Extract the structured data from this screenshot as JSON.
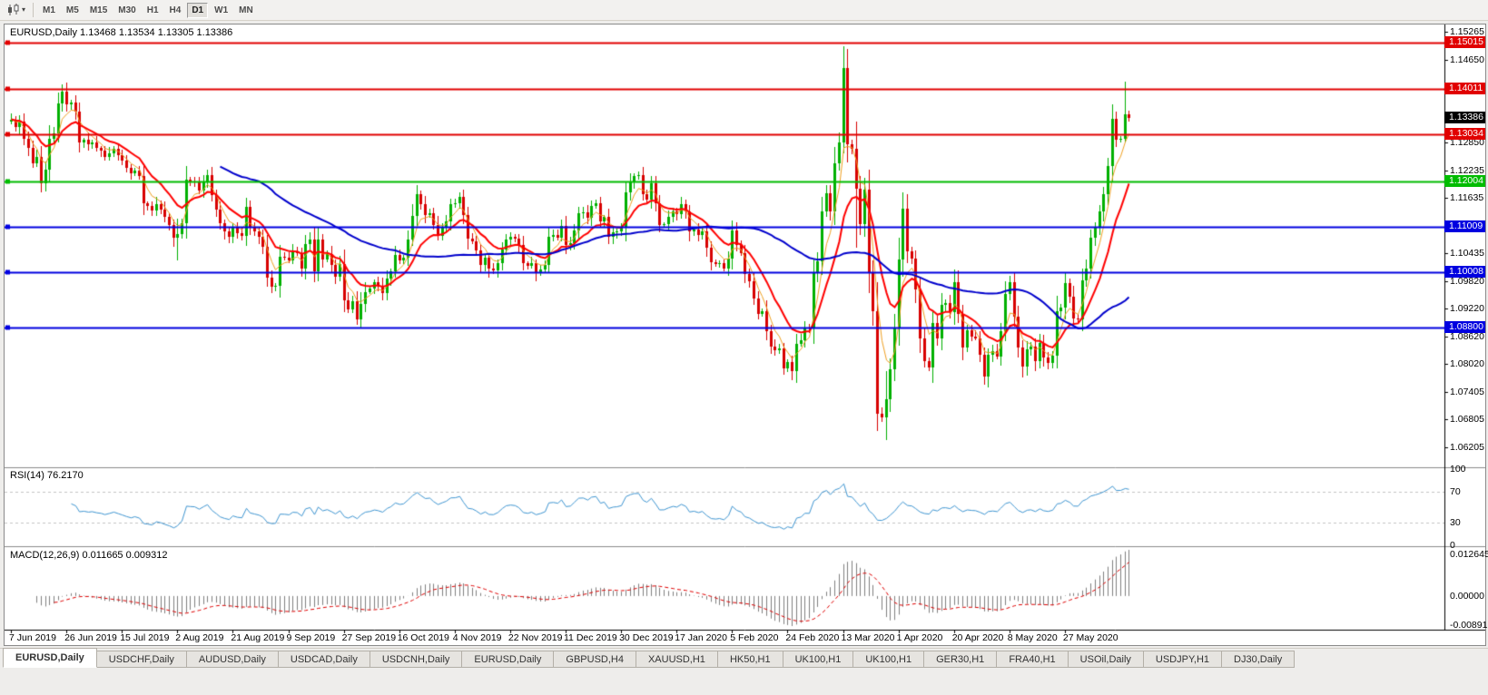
{
  "toolbar": {
    "timeframes": [
      "M1",
      "M5",
      "M15",
      "M30",
      "H1",
      "H4",
      "D1",
      "W1",
      "MN"
    ],
    "selected_timeframe": "D1"
  },
  "quote": {
    "symbol": "EURUSD,Daily",
    "open": "1.13468",
    "high": "1.13534",
    "low": "1.13305",
    "close": "1.13386"
  },
  "indicators": {
    "rsi": {
      "label": "RSI(14)",
      "value": "76.2170",
      "period": 14,
      "color": "#3f96d2",
      "levels": [
        {
          "label": "100",
          "value": 100
        },
        {
          "label": "70",
          "value": 70
        },
        {
          "label": "30",
          "value": 30
        },
        {
          "label": "0",
          "value": 0
        }
      ],
      "dashed_levels": [
        70,
        30
      ]
    },
    "macd": {
      "label": "MACD(12,26,9)",
      "main_value": "0.011665",
      "signal_value": "0.009312",
      "fast": 12,
      "slow": 26,
      "signal": 9,
      "hist_color": "#808080",
      "signal_color": "#e00000",
      "axis_labels": [
        {
          "label": "0.012645",
          "pos": "top"
        },
        {
          "label": "0.00000",
          "pos": "zero"
        },
        {
          "label": "-0.00891",
          "pos": "bottom"
        }
      ]
    }
  },
  "chart_data": {
    "type": "candlestick",
    "symbol": "EURUSD",
    "timeframe": "Daily",
    "price_top": 1.154,
    "price_bottom": 1.0578,
    "current_price": "1.13386",
    "bull_color": "#00b000",
    "bear_color": "#d80000",
    "x_labels": [
      "7 Jun 2019",
      "26 Jun 2019",
      "15 Jul 2019",
      "2 Aug 2019",
      "21 Aug 2019",
      "9 Sep 2019",
      "27 Sep 2019",
      "16 Oct 2019",
      "4 Nov 2019",
      "22 Nov 2019",
      "11 Dec 2019",
      "30 Dec 2019",
      "17 Jan 2020",
      "5 Feb 2020",
      "24 Feb 2020",
      "13 Mar 2020",
      "1 Apr 2020",
      "20 Apr 2020",
      "8 May 2020",
      "27 May 2020"
    ],
    "label_every_n_bars": 13,
    "price_axis_ticks": [
      "1.15265",
      "1.14650",
      "1.14035",
      "1.13420",
      "1.12850",
      "1.12235",
      "1.11635",
      "1.11020",
      "1.10435",
      "1.09820",
      "1.09220",
      "1.08620",
      "1.08020",
      "1.07405",
      "1.06805",
      "1.06205"
    ],
    "hlines": [
      {
        "price": 1.15015,
        "label": "1.15015",
        "color": "#e10000"
      },
      {
        "price": 1.14011,
        "label": "1.14011",
        "color": "#e10000"
      },
      {
        "price": 1.13034,
        "label": "1.13034",
        "color": "#e10000"
      },
      {
        "price": 1.12004,
        "label": "1.12004",
        "color": "#00bc00"
      },
      {
        "price": 1.11009,
        "label": "1.11009",
        "color": "#0000e0"
      },
      {
        "price": 1.10008,
        "label": "1.10008",
        "color": "#0000e0"
      },
      {
        "price": 1.088,
        "label": "1.08800",
        "color": "#0000e0"
      }
    ],
    "moving_averages": [
      {
        "period": 5,
        "method": "ema",
        "color": "#f0a020",
        "width": 1
      },
      {
        "period": 13,
        "method": "ema",
        "color": "#ff0000",
        "width": 2
      },
      {
        "period": 50,
        "method": "sma",
        "color": "#0000cc",
        "width": 2
      }
    ],
    "closes_pips": [
      11335,
      11318,
      11330,
      11292,
      11272,
      11240,
      11252,
      11196,
      11225,
      11293,
      11305,
      11370,
      11396,
      11368,
      11372,
      11352,
      11285,
      11290,
      11280,
      11284,
      11272,
      11266,
      11253,
      11261,
      11270,
      11256,
      11245,
      11230,
      11218,
      11224,
      11212,
      11152,
      11147,
      11136,
      11151,
      11139,
      11122,
      11104,
      11076,
      11085,
      11108,
      11203,
      11200,
      11198,
      11180,
      11199,
      11213,
      11170,
      11139,
      11108,
      11090,
      11078,
      11100,
      11086,
      11081,
      11144,
      11101,
      11090,
      11078,
      11058,
      10990,
      10970,
      10972,
      11035,
      11034,
      11028,
      11046,
      11043,
      11010,
      11062,
      11073,
      11004,
      11072,
      11030,
      11042,
      11017,
      10992,
      11020,
      10941,
      10921,
      10939,
      10899,
      10932,
      10959,
      10965,
      10979,
      10972,
      10956,
      10988,
      11003,
      11040,
      11028,
      11033,
      11073,
      11125,
      11171,
      11150,
      11126,
      11131,
      11105,
      11080,
      11099,
      11113,
      11150,
      11152,
      11166,
      11126,
      11074,
      11068,
      11050,
      11018,
      11034,
      11009,
      11006,
      11021,
      11051,
      11072,
      11078,
      11074,
      11060,
      11021,
      11015,
      11022,
      11001,
      11008,
      11018,
      11078,
      11082,
      11077,
      11103,
      11060,
      11064,
      11092,
      11130,
      11132,
      11120,
      11146,
      11152,
      11113,
      11122,
      11078,
      11088,
      11090,
      11098,
      11176,
      11199,
      11212,
      11213,
      11172,
      11160,
      11196,
      11153,
      11105,
      11106,
      11122,
      11134,
      11128,
      11150,
      11135,
      11090,
      11095,
      11083,
      11091,
      11055,
      11024,
      11019,
      11022,
      11010,
      11032,
      11093,
      11060,
      11044,
      10998,
      10982,
      10945,
      10911,
      10917,
      10873,
      10840,
      10831,
      10835,
      10792,
      10805,
      10785,
      10846,
      10854,
      10881,
      10880,
      10999,
      11026,
      11134,
      11173,
      11135,
      11240,
      11284,
      11446,
      11281,
      11270,
      11184,
      11106,
      11182,
      10999,
      10916,
      10692,
      10685,
      10725,
      10790,
      10880,
      11030,
      11140,
      11047,
      11031,
      10963,
      10858,
      10808,
      10793,
      10891,
      10858,
      10930,
      10935,
      10914,
      10980,
      10910,
      10838,
      10875,
      10862,
      10858,
      10822,
      10774,
      10821,
      10830,
      10818,
      10873,
      10955,
      10980,
      10905,
      10838,
      10795,
      10833,
      10839,
      10807,
      10848,
      10816,
      10804,
      10820,
      10916,
      10924,
      10977,
      10949,
      10900,
      10898,
      10983,
      11009,
      11076,
      11101,
      11134,
      11171,
      11234,
      11337,
      11290,
      11292,
      11347,
      11339
    ],
    "open_overrides_pips": {
      "0": 11330,
      "262": 11347
    },
    "hl_overrides_pips": {
      "12": [
        11412,
        11352
      ],
      "39": [
        11118,
        11027
      ],
      "82": [
        10958,
        10879
      ],
      "195": [
        11495,
        11260
      ],
      "198": [
        11330,
        11055
      ],
      "203": [
        10980,
        10655
      ],
      "205": [
        10786,
        10636
      ],
      "261": [
        11418,
        11285
      ],
      "262": [
        11353,
        11331
      ]
    }
  },
  "tabs": [
    {
      "label": "EURUSD,Daily",
      "active": true
    },
    {
      "label": "USDCHF,Daily",
      "active": false
    },
    {
      "label": "AUDUSD,Daily",
      "active": false
    },
    {
      "label": "USDCAD,Daily",
      "active": false
    },
    {
      "label": "USDCNH,Daily",
      "active": false
    },
    {
      "label": "EURUSD,Daily",
      "active": false
    },
    {
      "label": "GBPUSD,H4",
      "active": false
    },
    {
      "label": "XAUUSD,H1",
      "active": false
    },
    {
      "label": "HK50,H1",
      "active": false
    },
    {
      "label": "UK100,H1",
      "active": false
    },
    {
      "label": "UK100,H1",
      "active": false
    },
    {
      "label": "GER30,H1",
      "active": false
    },
    {
      "label": "FRA40,H1",
      "active": false
    },
    {
      "label": "USOil,Daily",
      "active": false
    },
    {
      "label": "USDJPY,H1",
      "active": false
    },
    {
      "label": "DJ30,Daily",
      "active": false
    }
  ]
}
